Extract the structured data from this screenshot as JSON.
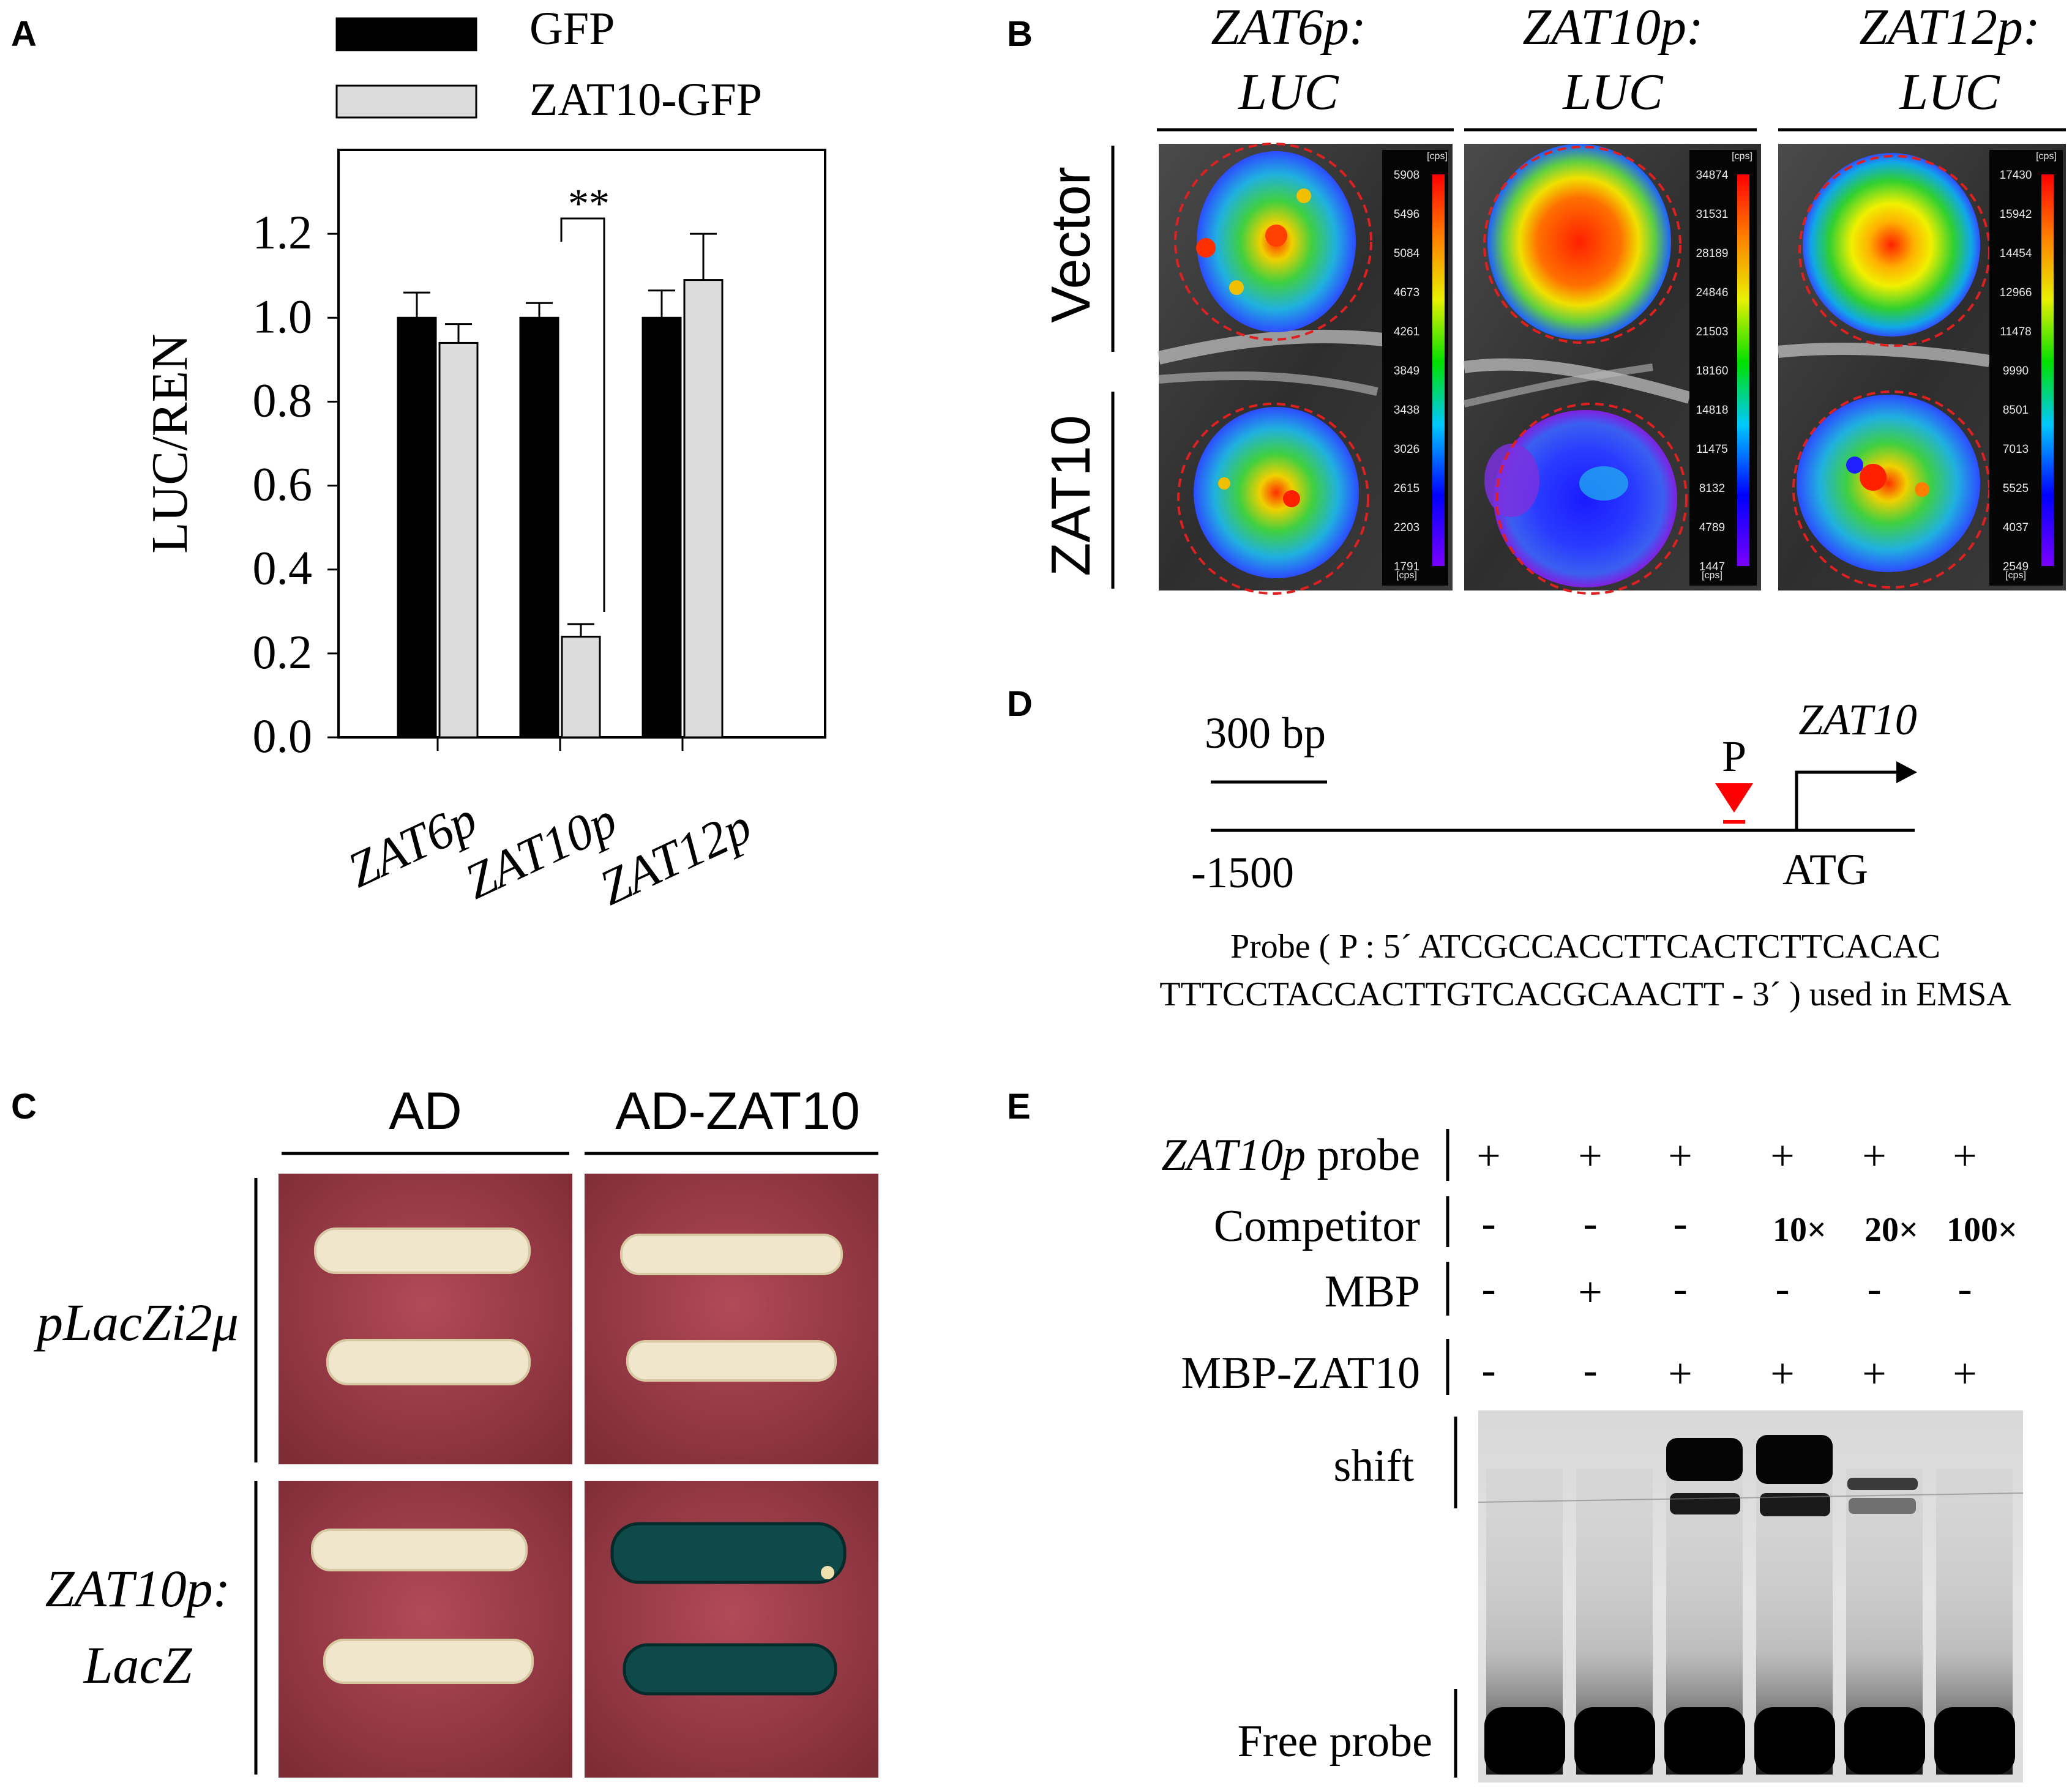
{
  "figure": {
    "panel_letters": {
      "a": "A",
      "b": "B",
      "c": "C",
      "d": "D",
      "e": "E"
    }
  },
  "panel_a": {
    "legend": [
      {
        "label": "GFP",
        "color": "#000000"
      },
      {
        "label": "ZAT10-GFP",
        "color": "#dcdcdc"
      }
    ],
    "significance": "**",
    "chart_data": {
      "type": "bar",
      "categories": [
        "ZAT6p",
        "ZAT10p",
        "ZAT12p"
      ],
      "series": [
        {
          "name": "GFP",
          "values": [
            1.0,
            1.0,
            1.0
          ],
          "errors": [
            0.06,
            0.035,
            0.065
          ]
        },
        {
          "name": "ZAT10-GFP",
          "values": [
            0.94,
            0.24,
            1.09
          ],
          "errors": [
            0.045,
            0.03,
            0.11
          ]
        }
      ],
      "ylabel": "LUC/REN",
      "xlabel": "",
      "ylim": [
        0,
        1.2
      ],
      "yticks": [
        "0.0",
        "0.2",
        "0.4",
        "0.6",
        "0.8",
        "1.0",
        "1.2"
      ],
      "grid": false,
      "legend_position": "top"
    }
  },
  "panel_b": {
    "columns": [
      {
        "line1": "ZAT6p:",
        "line2": "LUC",
        "scale_max": "5908",
        "scale_min": "1791",
        "ticks": [
          "5908",
          "5496",
          "5084",
          "4673",
          "4261",
          "3849",
          "3438",
          "3026",
          "2615",
          "2203",
          "1791"
        ]
      },
      {
        "line1": "ZAT10p:",
        "line2": "LUC",
        "scale_max": "34874",
        "scale_min": "1447",
        "ticks": [
          "34874",
          "31531",
          "28189",
          "24846",
          "21503",
          "18160",
          "14818",
          "11475",
          "8132",
          "4789",
          "1447"
        ]
      },
      {
        "line1": "ZAT12p:",
        "line2": "LUC",
        "scale_max": "17430",
        "scale_min": "2549",
        "ticks": [
          "17430",
          "15942",
          "14454",
          "12966",
          "11478",
          "9990",
          "8501",
          "7013",
          "5525",
          "4037",
          "2549"
        ]
      }
    ],
    "rows": [
      "Vector",
      "ZAT10"
    ],
    "unit": "[cps]"
  },
  "panel_c": {
    "columns": [
      "AD",
      "AD-ZAT10"
    ],
    "rows": [
      {
        "line1": "pLacZi2μ",
        "line2": ""
      },
      {
        "line1": "ZAT10p:",
        "line2": "LacZ"
      }
    ]
  },
  "panel_d": {
    "scale_label": "300 bp",
    "probe_marker": "P",
    "gene": "ZAT10",
    "start_label": "-1500",
    "atg_label": "ATG",
    "probe_line1": "Probe ( P : 5´ ATCGCCACCTTCACTCTTCACAC",
    "probe_line2": "TTTCCTACCACTTGTCACGCAACTT - 3´ ) used in EMSA"
  },
  "panel_e": {
    "rows": [
      {
        "label_italic": "ZAT10p",
        "label": " probe",
        "values": [
          "+",
          "+",
          "+",
          "+",
          "+",
          "+"
        ]
      },
      {
        "label_italic": "",
        "label": "Competitor",
        "values": [
          "-",
          "-",
          "-",
          "10×",
          "20×",
          "100×"
        ]
      },
      {
        "label_italic": "",
        "label": "MBP",
        "values": [
          "-",
          "+",
          "-",
          "-",
          "-",
          "-"
        ]
      },
      {
        "label_italic": "",
        "label": "MBP-ZAT10",
        "values": [
          "-",
          "-",
          "+",
          "+",
          "+",
          "+"
        ]
      }
    ],
    "shift_label": "shift",
    "free_label": "Free probe"
  }
}
